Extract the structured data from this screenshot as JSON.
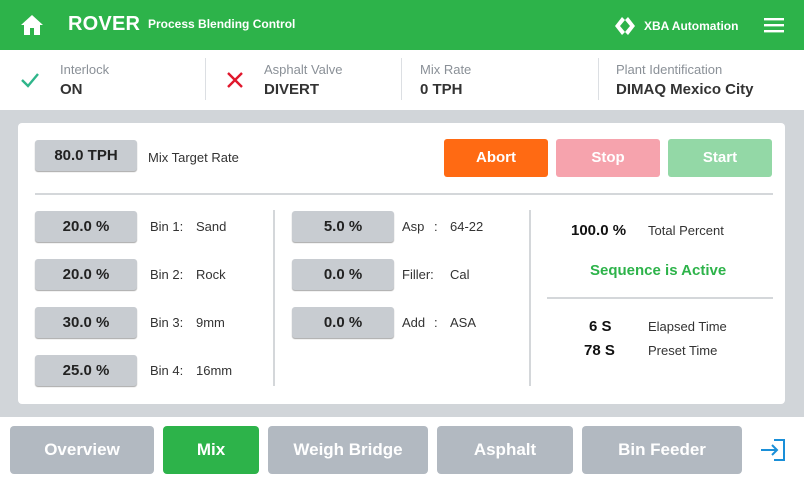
{
  "header": {
    "title": "ROVER",
    "subtitle": "Process Blending Control",
    "brand": "XBA Automation",
    "home_icon": "home-icon",
    "menu_icon": "hamburger-menu-icon",
    "brand_icon": "xba-logo-icon",
    "color": "#2db34a"
  },
  "status": {
    "interlock": {
      "label": "Interlock",
      "value": "ON",
      "icon": "check-icon"
    },
    "asphalt_valve": {
      "label": "Asphalt Valve",
      "value": "DIVERT",
      "icon": "cross-icon"
    },
    "mix_rate": {
      "label": "Mix Rate",
      "value": "0 TPH"
    },
    "plant": {
      "label": "Plant Identification",
      "value": "DIMAQ Mexico City"
    }
  },
  "mix": {
    "target_value": "80.0 TPH",
    "target_label": "Mix Target Rate",
    "buttons": {
      "abort": "Abort",
      "stop": "Stop",
      "start": "Start"
    },
    "bins": [
      {
        "value": "20.0 %",
        "name": "Bin 1:",
        "material": "Sand"
      },
      {
        "value": "20.0 %",
        "name": "Bin 2:",
        "material": "Rock"
      },
      {
        "value": "30.0 %",
        "name": "Bin 3:",
        "material": "9mm"
      },
      {
        "value": "25.0 %",
        "name": "Bin 4:",
        "material": "16mm"
      }
    ],
    "additives": [
      {
        "value": "5.0 %",
        "name": "Asp",
        "sep": ":",
        "material": "64-22"
      },
      {
        "value": "0.0 %",
        "name": "Filler:",
        "sep": "",
        "material": "Cal"
      },
      {
        "value": "0.0 %",
        "name": "Add",
        "sep": ":",
        "material": "ASA"
      }
    ],
    "total_value": "100.0 %",
    "total_label": "Total Percent",
    "sequence_status": "Sequence is Active",
    "elapsed_value": "6 S",
    "elapsed_label": "Elapsed Time",
    "preset_value": "78 S",
    "preset_label": "Preset Time"
  },
  "nav": {
    "tabs": [
      "Overview",
      "Mix",
      "Weigh Bridge",
      "Asphalt",
      "Bin Feeder"
    ],
    "active": "Mix",
    "exit_icon": "logout-icon"
  },
  "colors": {
    "accent_green": "#2db34a",
    "abort": "#ff6a13",
    "stop_disabled": "#f6a3ad",
    "start_disabled": "#93d8a6",
    "tab_inactive": "#b2b9c1",
    "error_red": "#e0182d",
    "check_green": "#2fb58a"
  }
}
